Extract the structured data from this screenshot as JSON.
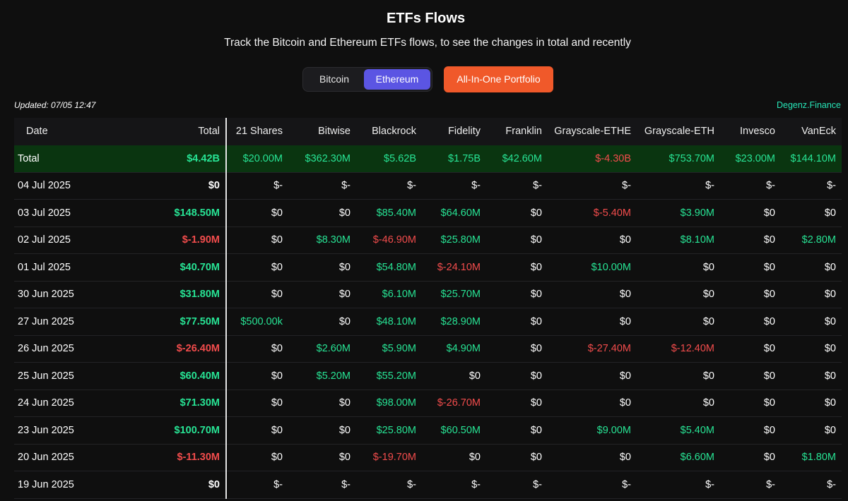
{
  "header": {
    "title": "ETFs Flows",
    "subtitle": "Track the Bitcoin and Ethereum ETFs flows, to see the changes in total and recently"
  },
  "toggle": {
    "bitcoin_label": "Bitcoin",
    "ethereum_label": "Ethereum",
    "selected": "Ethereum"
  },
  "portfolio_button": "All-In-One Portfolio",
  "updated": "Updated: 07/05 12:47",
  "brand": "Degenz.Finance",
  "colors": {
    "positive": "#27e394",
    "negative": "#f24c4c",
    "accent": "#5b55e3",
    "portfolio": "#f0592a",
    "brand": "#27e6b8",
    "total_row_bg": "#0a3510"
  },
  "table": {
    "columns": [
      "Date",
      "Total",
      "21 Shares",
      "Bitwise",
      "Blackrock",
      "Fidelity",
      "Franklin",
      "Grayscale-ETHE",
      "Grayscale-ETH",
      "Invesco",
      "VanEck"
    ],
    "total_row": [
      "Total",
      "$4.42B",
      "$20.00M",
      "$362.30M",
      "$5.62B",
      "$1.75B",
      "$42.60M",
      "$-4.30B",
      "$753.70M",
      "$23.00M",
      "$144.10M"
    ],
    "rows": [
      [
        "04 Jul 2025",
        "$0",
        "$-",
        "$-",
        "$-",
        "$-",
        "$-",
        "$-",
        "$-",
        "$-",
        "$-"
      ],
      [
        "03 Jul 2025",
        "$148.50M",
        "$0",
        "$0",
        "$85.40M",
        "$64.60M",
        "$0",
        "$-5.40M",
        "$3.90M",
        "$0",
        "$0"
      ],
      [
        "02 Jul 2025",
        "$-1.90M",
        "$0",
        "$8.30M",
        "$-46.90M",
        "$25.80M",
        "$0",
        "$0",
        "$8.10M",
        "$0",
        "$2.80M"
      ],
      [
        "01 Jul 2025",
        "$40.70M",
        "$0",
        "$0",
        "$54.80M",
        "$-24.10M",
        "$0",
        "$10.00M",
        "$0",
        "$0",
        "$0"
      ],
      [
        "30 Jun 2025",
        "$31.80M",
        "$0",
        "$0",
        "$6.10M",
        "$25.70M",
        "$0",
        "$0",
        "$0",
        "$0",
        "$0"
      ],
      [
        "27 Jun 2025",
        "$77.50M",
        "$500.00k",
        "$0",
        "$48.10M",
        "$28.90M",
        "$0",
        "$0",
        "$0",
        "$0",
        "$0"
      ],
      [
        "26 Jun 2025",
        "$-26.40M",
        "$0",
        "$2.60M",
        "$5.90M",
        "$4.90M",
        "$0",
        "$-27.40M",
        "$-12.40M",
        "$0",
        "$0"
      ],
      [
        "25 Jun 2025",
        "$60.40M",
        "$0",
        "$5.20M",
        "$55.20M",
        "$0",
        "$0",
        "$0",
        "$0",
        "$0",
        "$0"
      ],
      [
        "24 Jun 2025",
        "$71.30M",
        "$0",
        "$0",
        "$98.00M",
        "$-26.70M",
        "$0",
        "$0",
        "$0",
        "$0",
        "$0"
      ],
      [
        "23 Jun 2025",
        "$100.70M",
        "$0",
        "$0",
        "$25.80M",
        "$60.50M",
        "$0",
        "$9.00M",
        "$5.40M",
        "$0",
        "$0"
      ],
      [
        "20 Jun 2025",
        "$-11.30M",
        "$0",
        "$0",
        "$-19.70M",
        "$0",
        "$0",
        "$0",
        "$6.60M",
        "$0",
        "$1.80M"
      ],
      [
        "19 Jun 2025",
        "$0",
        "$-",
        "$-",
        "$-",
        "$-",
        "$-",
        "$-",
        "$-",
        "$-",
        "$-"
      ]
    ]
  }
}
